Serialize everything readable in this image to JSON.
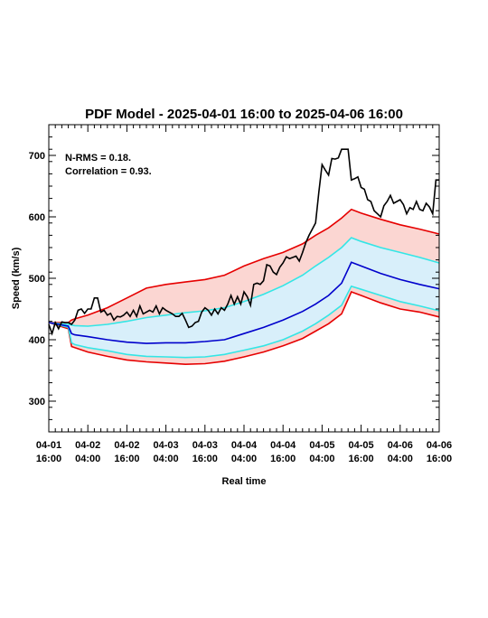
{
  "chart_data": {
    "type": "line",
    "title": "PDF Model - 2025-04-01 16:00 to 2025-04-06 16:00",
    "xlabel": "Real time",
    "ylabel": "Speed (km/s)",
    "xlim": [
      0,
      120
    ],
    "ylim": [
      250,
      750
    ],
    "yticks": [
      300,
      400,
      500,
      600,
      700
    ],
    "xticks": [
      {
        "t": 0,
        "line1": "04-01",
        "line2": "16:00"
      },
      {
        "t": 12,
        "line1": "04-02",
        "line2": "04:00"
      },
      {
        "t": 24,
        "line1": "04-02",
        "line2": "16:00"
      },
      {
        "t": 36,
        "line1": "04-03",
        "line2": "04:00"
      },
      {
        "t": 48,
        "line1": "04-03",
        "line2": "16:00"
      },
      {
        "t": 60,
        "line1": "04-04",
        "line2": "04:00"
      },
      {
        "t": 72,
        "line1": "04-04",
        "line2": "16:00"
      },
      {
        "t": 84,
        "line1": "04-05",
        "line2": "04:00"
      },
      {
        "t": 96,
        "line1": "04-05",
        "line2": "16:00"
      },
      {
        "t": 108,
        "line1": "04-06",
        "line2": "04:00"
      },
      {
        "t": 120,
        "line1": "04-06",
        "line2": "16:00"
      }
    ],
    "annotations": [
      "N-RMS = 0.18.",
      "Correlation = 0.93."
    ],
    "colors": {
      "observed": "#000000",
      "median": "#0000cc",
      "inner_band": "#33e6e6",
      "outer_band": "#e60000",
      "inner_fill": "#d8effa",
      "outer_fill": "#fbd6d2"
    },
    "model_x": [
      0,
      6,
      7,
      8,
      12,
      18,
      24,
      30,
      36,
      42,
      48,
      54,
      60,
      66,
      72,
      78,
      82,
      86,
      90,
      93,
      96,
      102,
      108,
      114,
      120
    ],
    "outer_upper": [
      428,
      428,
      432,
      434,
      440,
      452,
      468,
      484,
      490,
      494,
      498,
      505,
      520,
      532,
      542,
      556,
      570,
      582,
      598,
      612,
      606,
      596,
      587,
      580,
      572
    ],
    "inner_upper": [
      428,
      425,
      424,
      423,
      422,
      425,
      430,
      436,
      440,
      444,
      447,
      452,
      462,
      474,
      488,
      505,
      520,
      534,
      550,
      566,
      560,
      550,
      542,
      534,
      525
    ],
    "median": [
      428,
      422,
      410,
      408,
      405,
      400,
      396,
      394,
      395,
      395,
      397,
      400,
      410,
      420,
      432,
      446,
      458,
      472,
      492,
      526,
      520,
      508,
      498,
      490,
      483
    ],
    "inner_lower": [
      428,
      420,
      395,
      392,
      387,
      382,
      376,
      373,
      372,
      371,
      372,
      376,
      383,
      390,
      400,
      414,
      426,
      440,
      456,
      487,
      482,
      472,
      462,
      455,
      447
    ],
    "outer_lower": [
      428,
      418,
      389,
      387,
      380,
      373,
      367,
      364,
      362,
      360,
      361,
      365,
      372,
      380,
      390,
      402,
      414,
      426,
      442,
      478,
      472,
      460,
      450,
      445,
      437
    ],
    "observed_x": [
      0,
      1,
      2,
      3,
      4,
      5,
      6,
      7,
      8,
      9,
      10,
      11,
      12,
      13,
      14,
      15,
      16,
      17,
      18,
      19,
      20,
      21,
      22,
      23,
      24,
      25,
      26,
      27,
      28,
      29,
      30,
      31,
      32,
      33,
      34,
      35,
      36,
      37,
      38,
      39,
      40,
      41,
      42,
      43,
      44,
      45,
      46,
      47,
      48,
      49,
      50,
      51,
      52,
      53,
      54,
      55,
      56,
      57,
      58,
      59,
      60,
      61,
      62,
      63,
      64,
      65,
      66,
      67,
      68,
      69,
      70,
      71,
      72,
      73,
      74,
      75,
      76,
      77,
      78,
      79,
      80,
      81,
      82,
      83,
      84,
      85,
      86,
      87,
      88,
      89,
      90,
      91,
      92,
      93,
      94,
      95,
      96,
      97,
      98,
      99,
      100,
      101,
      102,
      103,
      104,
      105,
      106,
      107,
      108,
      109,
      110,
      111,
      112,
      113,
      114,
      115,
      116,
      117,
      118,
      119,
      120
    ],
    "observed": [
      425,
      410,
      428,
      418,
      429,
      428,
      428,
      425,
      432,
      448,
      450,
      443,
      450,
      450,
      468,
      468,
      445,
      448,
      440,
      443,
      432,
      438,
      437,
      440,
      445,
      438,
      448,
      438,
      455,
      442,
      445,
      448,
      445,
      455,
      442,
      452,
      448,
      445,
      442,
      438,
      438,
      443,
      432,
      420,
      422,
      428,
      430,
      445,
      452,
      448,
      440,
      450,
      442,
      452,
      448,
      458,
      472,
      458,
      470,
      458,
      478,
      470,
      456,
      490,
      492,
      490,
      496,
      522,
      520,
      510,
      506,
      518,
      525,
      535,
      532,
      534,
      536,
      528,
      542,
      558,
      570,
      580,
      590,
      640,
      685,
      676,
      668,
      695,
      694,
      696,
      710,
      710,
      710,
      660,
      662,
      665,
      648,
      645,
      628,
      625,
      610,
      605,
      600,
      618,
      625,
      635,
      622,
      625,
      628,
      620,
      605,
      615,
      612,
      625,
      612,
      610,
      622,
      616,
      605,
      660,
      660
    ]
  }
}
